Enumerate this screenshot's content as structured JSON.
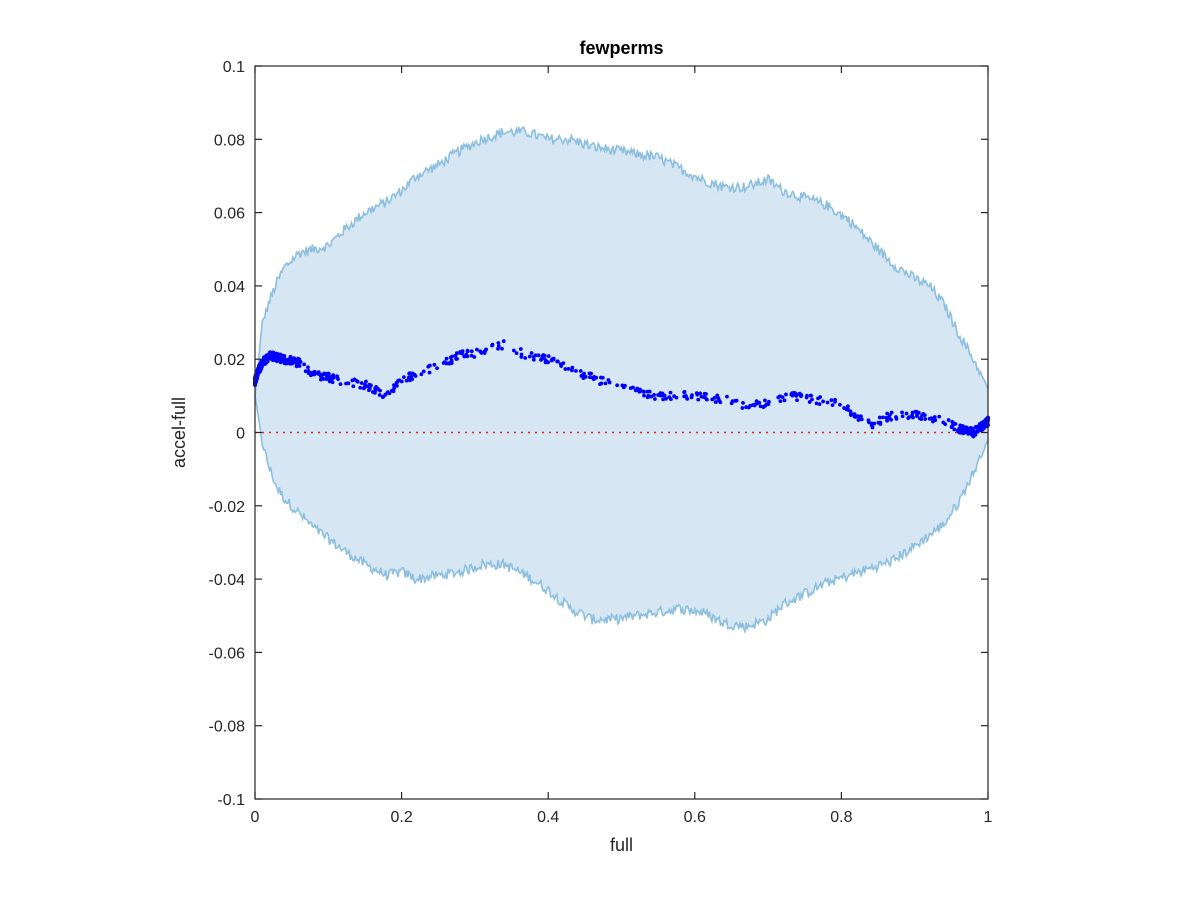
{
  "chart_data": {
    "type": "scatter",
    "title": "fewperms",
    "xlabel": "full",
    "ylabel": "accel-full",
    "xlim": [
      0,
      1
    ],
    "ylim": [
      -0.1,
      0.1
    ],
    "xticks": [
      0,
      0.2,
      0.4,
      0.6,
      0.8,
      1
    ],
    "xtick_labels": [
      "0",
      "0.2",
      "0.4",
      "0.6",
      "0.8",
      "1"
    ],
    "yticks": [
      -0.1,
      -0.08,
      -0.06,
      -0.04,
      -0.02,
      0,
      0.02,
      0.04,
      0.06,
      0.08,
      0.1
    ],
    "ytick_labels": [
      "-0.1",
      "-0.08",
      "-0.06",
      "-0.04",
      "-0.02",
      "0",
      "0.02",
      "0.04",
      "0.06",
      "0.08",
      "0.1"
    ],
    "grid": false,
    "colors": {
      "band_fill": "#d6e6f3",
      "band_edge": "#8dbfdf",
      "points": "#0000ff",
      "reference_line": "#e8231c",
      "axes": "#262626"
    },
    "band_upper": [
      [
        0,
        0.01
      ],
      [
        0.01,
        0.03
      ],
      [
        0.02,
        0.036
      ],
      [
        0.03,
        0.041
      ],
      [
        0.04,
        0.045
      ],
      [
        0.06,
        0.049
      ],
      [
        0.08,
        0.05
      ],
      [
        0.1,
        0.051
      ],
      [
        0.12,
        0.055
      ],
      [
        0.15,
        0.06
      ],
      [
        0.18,
        0.063
      ],
      [
        0.2,
        0.066
      ],
      [
        0.22,
        0.07
      ],
      [
        0.25,
        0.073
      ],
      [
        0.28,
        0.077
      ],
      [
        0.31,
        0.08
      ],
      [
        0.34,
        0.082
      ],
      [
        0.37,
        0.082
      ],
      [
        0.4,
        0.08
      ],
      [
        0.43,
        0.08
      ],
      [
        0.46,
        0.078
      ],
      [
        0.49,
        0.077
      ],
      [
        0.52,
        0.076
      ],
      [
        0.55,
        0.075
      ],
      [
        0.58,
        0.072
      ],
      [
        0.61,
        0.069
      ],
      [
        0.64,
        0.067
      ],
      [
        0.67,
        0.067
      ],
      [
        0.7,
        0.069
      ],
      [
        0.72,
        0.066
      ],
      [
        0.75,
        0.064
      ],
      [
        0.78,
        0.062
      ],
      [
        0.81,
        0.058
      ],
      [
        0.84,
        0.052
      ],
      [
        0.87,
        0.046
      ],
      [
        0.9,
        0.042
      ],
      [
        0.92,
        0.04
      ],
      [
        0.94,
        0.035
      ],
      [
        0.96,
        0.027
      ],
      [
        0.98,
        0.02
      ],
      [
        1.0,
        0.012
      ]
    ],
    "band_lower": [
      [
        0,
        0.01
      ],
      [
        0.01,
        -0.003
      ],
      [
        0.02,
        -0.01
      ],
      [
        0.03,
        -0.015
      ],
      [
        0.04,
        -0.018
      ],
      [
        0.06,
        -0.022
      ],
      [
        0.08,
        -0.026
      ],
      [
        0.1,
        -0.029
      ],
      [
        0.12,
        -0.032
      ],
      [
        0.15,
        -0.036
      ],
      [
        0.18,
        -0.039
      ],
      [
        0.2,
        -0.038
      ],
      [
        0.22,
        -0.04
      ],
      [
        0.25,
        -0.039
      ],
      [
        0.28,
        -0.038
      ],
      [
        0.31,
        -0.036
      ],
      [
        0.34,
        -0.036
      ],
      [
        0.37,
        -0.039
      ],
      [
        0.4,
        -0.043
      ],
      [
        0.43,
        -0.048
      ],
      [
        0.46,
        -0.051
      ],
      [
        0.49,
        -0.051
      ],
      [
        0.52,
        -0.05
      ],
      [
        0.55,
        -0.049
      ],
      [
        0.58,
        -0.048
      ],
      [
        0.61,
        -0.049
      ],
      [
        0.64,
        -0.052
      ],
      [
        0.67,
        -0.053
      ],
      [
        0.7,
        -0.051
      ],
      [
        0.72,
        -0.047
      ],
      [
        0.75,
        -0.044
      ],
      [
        0.78,
        -0.041
      ],
      [
        0.81,
        -0.039
      ],
      [
        0.84,
        -0.037
      ],
      [
        0.87,
        -0.035
      ],
      [
        0.9,
        -0.031
      ],
      [
        0.92,
        -0.028
      ],
      [
        0.94,
        -0.025
      ],
      [
        0.96,
        -0.019
      ],
      [
        0.98,
        -0.011
      ],
      [
        1.0,
        -0.002
      ]
    ],
    "points_trend": [
      [
        0,
        0.014
      ],
      [
        0.005,
        0.017
      ],
      [
        0.01,
        0.019
      ],
      [
        0.02,
        0.021
      ],
      [
        0.04,
        0.02
      ],
      [
        0.06,
        0.019
      ],
      [
        0.08,
        0.016
      ],
      [
        0.1,
        0.015
      ],
      [
        0.12,
        0.014
      ],
      [
        0.15,
        0.013
      ],
      [
        0.18,
        0.01
      ],
      [
        0.2,
        0.014
      ],
      [
        0.22,
        0.016
      ],
      [
        0.25,
        0.018
      ],
      [
        0.28,
        0.021
      ],
      [
        0.31,
        0.022
      ],
      [
        0.34,
        0.024
      ],
      [
        0.37,
        0.021
      ],
      [
        0.4,
        0.02
      ],
      [
        0.43,
        0.017
      ],
      [
        0.46,
        0.015
      ],
      [
        0.49,
        0.013
      ],
      [
        0.52,
        0.011
      ],
      [
        0.55,
        0.01
      ],
      [
        0.58,
        0.01
      ],
      [
        0.61,
        0.01
      ],
      [
        0.64,
        0.009
      ],
      [
        0.67,
        0.007
      ],
      [
        0.7,
        0.008
      ],
      [
        0.73,
        0.01
      ],
      [
        0.76,
        0.009
      ],
      [
        0.79,
        0.008
      ],
      [
        0.82,
        0.005
      ],
      [
        0.84,
        0.002
      ],
      [
        0.86,
        0.004
      ],
      [
        0.88,
        0.005
      ],
      [
        0.9,
        0.005
      ],
      [
        0.92,
        0.004
      ],
      [
        0.94,
        0.003
      ],
      [
        0.96,
        0.001
      ],
      [
        0.98,
        0.0
      ],
      [
        1.0,
        0.003
      ]
    ],
    "reference_line_y": 0
  }
}
